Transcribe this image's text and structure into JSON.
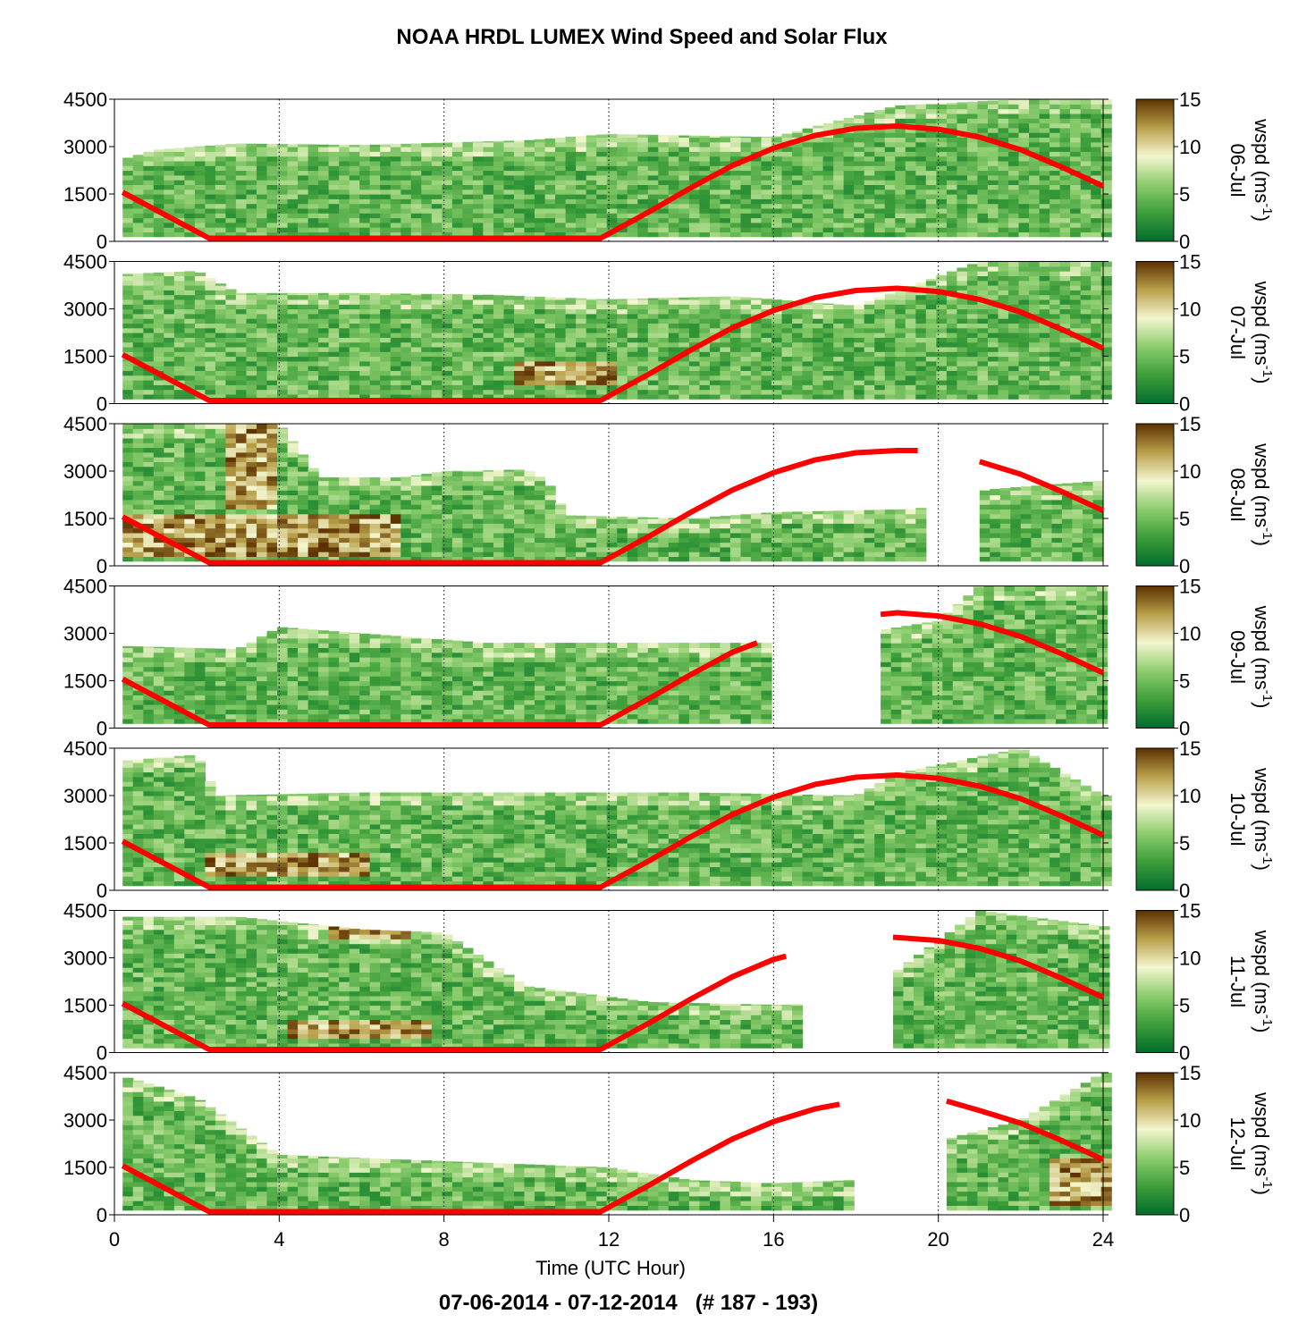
{
  "chart_data": {
    "type": "heatmap",
    "title": "NOAA HRDL LUMEX Wind Speed and Solar Flux",
    "subtitle": "07-06-2014 - 07-12-2014   (# 187 - 193)",
    "xlabel": "Time (UTC Hour)",
    "xlim": [
      0,
      24
    ],
    "x_ticks": [
      "0",
      "4",
      "8",
      "12",
      "16",
      "20",
      "24"
    ],
    "x_tick_values": [
      0,
      4,
      8,
      12,
      16,
      20,
      24
    ],
    "ylim": [
      0,
      4500
    ],
    "y_ticks": [
      "0",
      "1500",
      "3000",
      "4500"
    ],
    "y_tick_values": [
      0,
      1500,
      3000,
      4500
    ],
    "grid": "vertical dotted lines at 4-hour intervals",
    "colorbar": {
      "label_main": "wspd (ms",
      "label_exp": "-1",
      "label_close": ")",
      "range": [
        0,
        15
      ],
      "ticks": [
        "0",
        "5",
        "10",
        "15"
      ],
      "tick_values": [
        0,
        5,
        10,
        15
      ],
      "colors": [
        "#006d2c",
        "#3d9e3a",
        "#8ccd6e",
        "#f4f6cf",
        "#b9a04a",
        "#5c3000"
      ]
    },
    "series_color": "#ff0000",
    "panels": [
      {
        "day": "06-Jul",
        "data_segments": [
          [
            0.2,
            24
          ]
        ],
        "top_profile": [
          [
            0.2,
            2600
          ],
          [
            1,
            2900
          ],
          [
            3,
            3100
          ],
          [
            6,
            3050
          ],
          [
            10,
            3200
          ],
          [
            12,
            3400
          ],
          [
            16,
            3300
          ],
          [
            19,
            4300
          ],
          [
            22,
            4500
          ],
          [
            24,
            4500
          ]
        ],
        "brown_patches": [],
        "solar_flux": [
          [
            [
              0.2,
              1550
            ],
            [
              2.3,
              100
            ],
            [
              11.8,
              100
            ],
            [
              13,
              950
            ],
            [
              14,
              1700
            ],
            [
              15,
              2400
            ],
            [
              16,
              2950
            ],
            [
              17,
              3350
            ],
            [
              18,
              3580
            ],
            [
              19,
              3650
            ],
            [
              20,
              3550
            ],
            [
              21,
              3300
            ],
            [
              22,
              2900
            ],
            [
              23,
              2350
            ],
            [
              24,
              1750
            ]
          ]
        ]
      },
      {
        "day": "07-Jul",
        "data_segments": [
          [
            0.2,
            24
          ]
        ],
        "top_profile": [
          [
            0.2,
            4100
          ],
          [
            2,
            4200
          ],
          [
            3,
            3500
          ],
          [
            6,
            3500
          ],
          [
            9,
            3450
          ],
          [
            12,
            3300
          ],
          [
            15,
            3400
          ],
          [
            18,
            3100
          ],
          [
            21,
            4500
          ],
          [
            24,
            4500
          ]
        ],
        "brown_patches": [
          [
            9.5,
            600,
            2.5,
            700
          ]
        ],
        "solar_flux": [
          [
            [
              0.2,
              1550
            ],
            [
              2.3,
              100
            ],
            [
              11.8,
              100
            ],
            [
              13,
              950
            ],
            [
              14,
              1700
            ],
            [
              15,
              2400
            ],
            [
              16,
              2950
            ],
            [
              17,
              3350
            ],
            [
              18,
              3580
            ],
            [
              19,
              3650
            ],
            [
              20,
              3550
            ],
            [
              21,
              3300
            ],
            [
              22,
              2900
            ],
            [
              23,
              2350
            ],
            [
              24,
              1750
            ]
          ]
        ]
      },
      {
        "day": "08-Jul",
        "data_segments": [
          [
            0.2,
            19.5
          ],
          [
            21,
            24
          ]
        ],
        "top_profile": [
          [
            0.2,
            4500
          ],
          [
            2,
            4500
          ],
          [
            4,
            4500
          ],
          [
            5,
            2800
          ],
          [
            7,
            2800
          ],
          [
            8,
            3000
          ],
          [
            10,
            3050
          ],
          [
            10.5,
            2700
          ],
          [
            11,
            1600
          ],
          [
            14,
            1500
          ],
          [
            16,
            1700
          ],
          [
            19.5,
            1800
          ],
          [
            21,
            2400
          ],
          [
            24,
            2700
          ]
        ],
        "brown_patches": [
          [
            0.2,
            300,
            6.5,
            1200
          ],
          [
            2.5,
            1800,
            1.4,
            2700
          ]
        ],
        "solar_flux": [
          [
            [
              0.2,
              1550
            ],
            [
              2.3,
              100
            ],
            [
              11.8,
              100
            ],
            [
              13,
              950
            ],
            [
              14,
              1700
            ],
            [
              15,
              2400
            ],
            [
              16,
              2950
            ],
            [
              17,
              3350
            ],
            [
              18,
              3580
            ],
            [
              19,
              3650
            ],
            [
              19.5,
              3650
            ]
          ],
          [
            [
              21,
              3300
            ],
            [
              22,
              2900
            ],
            [
              23,
              2350
            ],
            [
              24,
              1750
            ]
          ]
        ]
      },
      {
        "day": "09-Jul",
        "data_segments": [
          [
            0.2,
            15.9
          ],
          [
            18.6,
            24
          ]
        ],
        "top_profile": [
          [
            0.2,
            2600
          ],
          [
            3,
            2500
          ],
          [
            4,
            3200
          ],
          [
            6,
            3000
          ],
          [
            9,
            2700
          ],
          [
            12,
            2700
          ],
          [
            15.9,
            2700
          ],
          [
            18.6,
            3100
          ],
          [
            20,
            3400
          ],
          [
            21,
            4500
          ],
          [
            24,
            4500
          ]
        ],
        "brown_patches": [],
        "solar_flux": [
          [
            [
              0.2,
              1550
            ],
            [
              2.3,
              100
            ],
            [
              11.8,
              100
            ],
            [
              13,
              950
            ],
            [
              14,
              1700
            ],
            [
              15,
              2400
            ],
            [
              15.6,
              2700
            ]
          ],
          [
            [
              18.6,
              3600
            ],
            [
              19,
              3650
            ],
            [
              20,
              3550
            ],
            [
              21,
              3300
            ],
            [
              22,
              2900
            ],
            [
              23,
              2350
            ],
            [
              24,
              1750
            ]
          ]
        ]
      },
      {
        "day": "10-Jul",
        "data_segments": [
          [
            0.2,
            24
          ]
        ],
        "top_profile": [
          [
            0.2,
            4100
          ],
          [
            2,
            4300
          ],
          [
            2.5,
            3000
          ],
          [
            6,
            3100
          ],
          [
            10,
            3100
          ],
          [
            14,
            3100
          ],
          [
            18,
            3000
          ],
          [
            19,
            3700
          ],
          [
            22,
            4500
          ],
          [
            24,
            3000
          ]
        ],
        "brown_patches": [
          [
            2,
            450,
            4,
            600
          ]
        ],
        "solar_flux": [
          [
            [
              0.2,
              1550
            ],
            [
              2.3,
              100
            ],
            [
              11.8,
              100
            ],
            [
              13,
              950
            ],
            [
              14,
              1700
            ],
            [
              15,
              2400
            ],
            [
              16,
              2950
            ],
            [
              17,
              3350
            ],
            [
              18,
              3580
            ],
            [
              19,
              3650
            ],
            [
              20,
              3550
            ],
            [
              21,
              3300
            ],
            [
              22,
              2900
            ],
            [
              23,
              2350
            ],
            [
              24,
              1750
            ]
          ]
        ]
      },
      {
        "day": "11-Jul",
        "data_segments": [
          [
            0.2,
            16.5
          ],
          [
            18.9,
            24
          ]
        ],
        "top_profile": [
          [
            0.2,
            4300
          ],
          [
            3,
            4300
          ],
          [
            6,
            3900
          ],
          [
            8,
            3800
          ],
          [
            10,
            2100
          ],
          [
            13,
            1600
          ],
          [
            16.5,
            1500
          ],
          [
            18.9,
            2500
          ],
          [
            21,
            4500
          ],
          [
            24,
            4000
          ]
        ],
        "brown_patches": [
          [
            4,
            400,
            3.5,
            600
          ],
          [
            5,
            3600,
            2,
            500
          ]
        ],
        "solar_flux": [
          [
            [
              0.2,
              1550
            ],
            [
              2.3,
              100
            ],
            [
              11.8,
              100
            ],
            [
              13,
              950
            ],
            [
              14,
              1700
            ],
            [
              15,
              2400
            ],
            [
              16,
              2950
            ],
            [
              16.3,
              3050
            ]
          ],
          [
            [
              18.9,
              3650
            ],
            [
              20,
              3550
            ],
            [
              21,
              3300
            ],
            [
              22,
              2900
            ],
            [
              23,
              2350
            ],
            [
              24,
              1750
            ]
          ]
        ]
      },
      {
        "day": "12-Jul",
        "data_segments": [
          [
            0.2,
            17.9
          ],
          [
            20.2,
            24
          ]
        ],
        "top_profile": [
          [
            0.2,
            4400
          ],
          [
            2,
            3700
          ],
          [
            4,
            1900
          ],
          [
            8,
            1700
          ],
          [
            12,
            1500
          ],
          [
            14,
            1100
          ],
          [
            16,
            1000
          ],
          [
            17.9,
            1100
          ],
          [
            20.2,
            2400
          ],
          [
            22,
            3000
          ],
          [
            24,
            4500
          ]
        ],
        "brown_patches": [
          [
            22.5,
            300,
            1.5,
            1400
          ]
        ],
        "solar_flux": [
          [
            [
              0.2,
              1550
            ],
            [
              2.3,
              100
            ],
            [
              11.8,
              100
            ],
            [
              13,
              950
            ],
            [
              14,
              1700
            ],
            [
              15,
              2400
            ],
            [
              16,
              2950
            ],
            [
              17,
              3350
            ],
            [
              17.6,
              3500
            ]
          ],
          [
            [
              20.2,
              3600
            ],
            [
              21,
              3300
            ],
            [
              22,
              2900
            ],
            [
              23,
              2350
            ],
            [
              24,
              1750
            ]
          ]
        ]
      }
    ]
  }
}
